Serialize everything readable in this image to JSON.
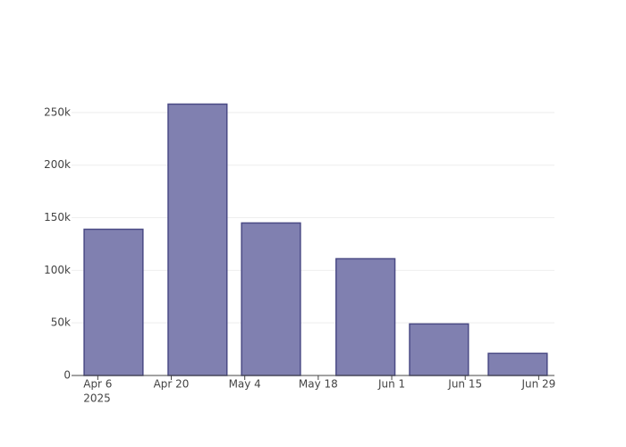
{
  "chart_data": {
    "type": "bar",
    "x": [
      "2025-04-09",
      "2025-04-25",
      "2025-05-09",
      "2025-05-27",
      "2025-06-10",
      "2025-06-25"
    ],
    "values": [
      139000,
      258000,
      145000,
      111000,
      49000,
      21000
    ],
    "color": "#8080b0",
    "edge_color": "#4a4a85",
    "xlim": [
      "2025-04-01",
      "2025-07-02"
    ],
    "xticks": [
      {
        "value": "2025-04-06",
        "label": "Apr 6"
      },
      {
        "value": "2025-04-20",
        "label": "Apr 20"
      },
      {
        "value": "2025-05-04",
        "label": "May 4"
      },
      {
        "value": "2025-05-18",
        "label": "May 18"
      },
      {
        "value": "2025-06-01",
        "label": "Jun 1"
      },
      {
        "value": "2025-06-15",
        "label": "Jun 15"
      },
      {
        "value": "2025-06-29",
        "label": "Jun 29"
      }
    ],
    "xtick_year": "2025",
    "ylim": [
      0,
      272000
    ],
    "yticks": [
      0,
      {
        "value": 50000,
        "label": "50k"
      },
      {
        "value": 100000,
        "label": "100k"
      },
      {
        "value": 150000,
        "label": "150k"
      },
      {
        "value": 200000,
        "label": "200k"
      },
      {
        "value": 250000,
        "label": "250k"
      }
    ],
    "grid": true
  }
}
